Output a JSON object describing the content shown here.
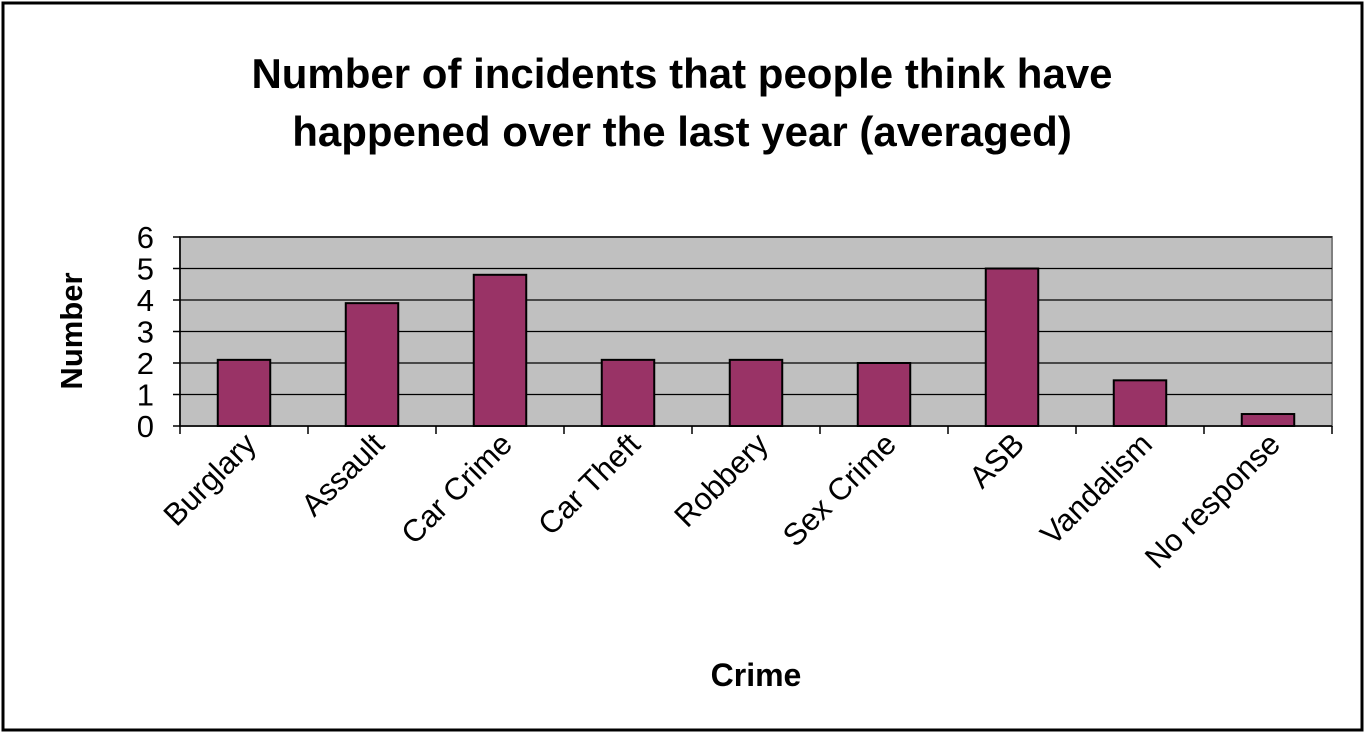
{
  "chart_data": {
    "type": "bar",
    "title_lines": [
      "Number of incidents that people think have",
      "happened over the last year (averaged)"
    ],
    "xlabel": "Crime",
    "ylabel": "Number",
    "categories": [
      "Burglary",
      "Assault",
      "Car Crime",
      "Car Theft",
      "Robbery",
      "Sex Crime",
      "ASB",
      "Vandalism",
      "No response"
    ],
    "values": [
      2.1,
      3.9,
      4.8,
      2.1,
      2.1,
      2.0,
      5.0,
      1.45,
      0.38
    ],
    "ylim": [
      0,
      6
    ],
    "yticks": [
      0,
      1,
      2,
      3,
      4,
      5,
      6
    ],
    "grid": true,
    "legend": "none",
    "colors": {
      "bar_fill": "#993366",
      "bar_stroke": "#000000",
      "plot_background": "#c0c0c0",
      "gridline": "#000000",
      "text": "#000000"
    }
  }
}
